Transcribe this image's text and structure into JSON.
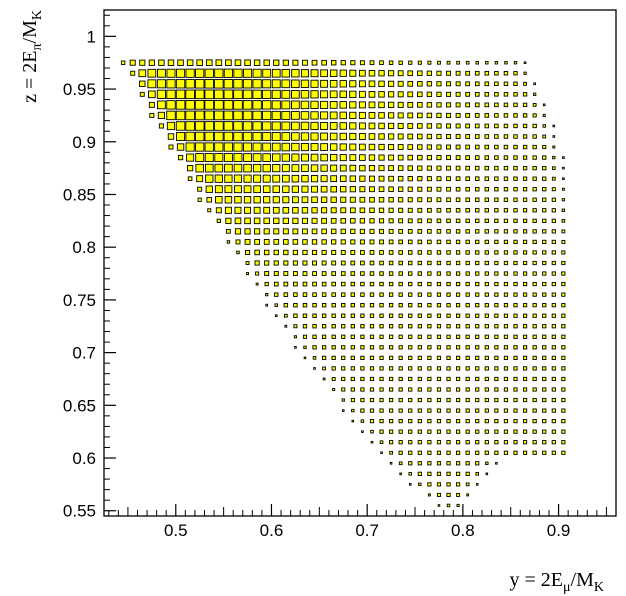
{
  "chart_data": {
    "type": "heatmap",
    "subtype": "box",
    "title": "",
    "xlabel": "y = 2E_μ/M_K",
    "ylabel": "z = 2E_π/M_K",
    "xlabel_parts": {
      "main": "y = 2E",
      "sub1": "μ",
      "mid": "/M",
      "sub2": "K"
    },
    "ylabel_parts": {
      "main": "z = 2E",
      "sub1": "π",
      "mid": "/M",
      "sub2": "K"
    },
    "xlim": [
      0.425,
      0.96
    ],
    "ylim": [
      0.545,
      1.025
    ],
    "x_ticks": [
      0.5,
      0.6,
      0.7,
      0.8,
      0.9
    ],
    "x_tick_labels": [
      "0.5",
      "0.6",
      "0.7",
      "0.8",
      "0.9"
    ],
    "y_ticks": [
      0.55,
      0.6,
      0.65,
      0.7,
      0.75,
      0.8,
      0.85,
      0.9,
      0.95,
      1.0
    ],
    "y_tick_labels": [
      "0.55",
      "0.6",
      "0.65",
      "0.7",
      "0.75",
      "0.8",
      "0.85",
      "0.9",
      "0.95",
      "1"
    ],
    "bin_width": 0.01,
    "grid": false,
    "colors": {
      "box_fill": "#ffff00",
      "box_edge": "#000000",
      "frame": "#000000"
    },
    "description": "Kµ3 Dalitz plot density; box area proportional to bin content, largest near y≈0.45–0.6, z≈0.88–0.97"
  }
}
